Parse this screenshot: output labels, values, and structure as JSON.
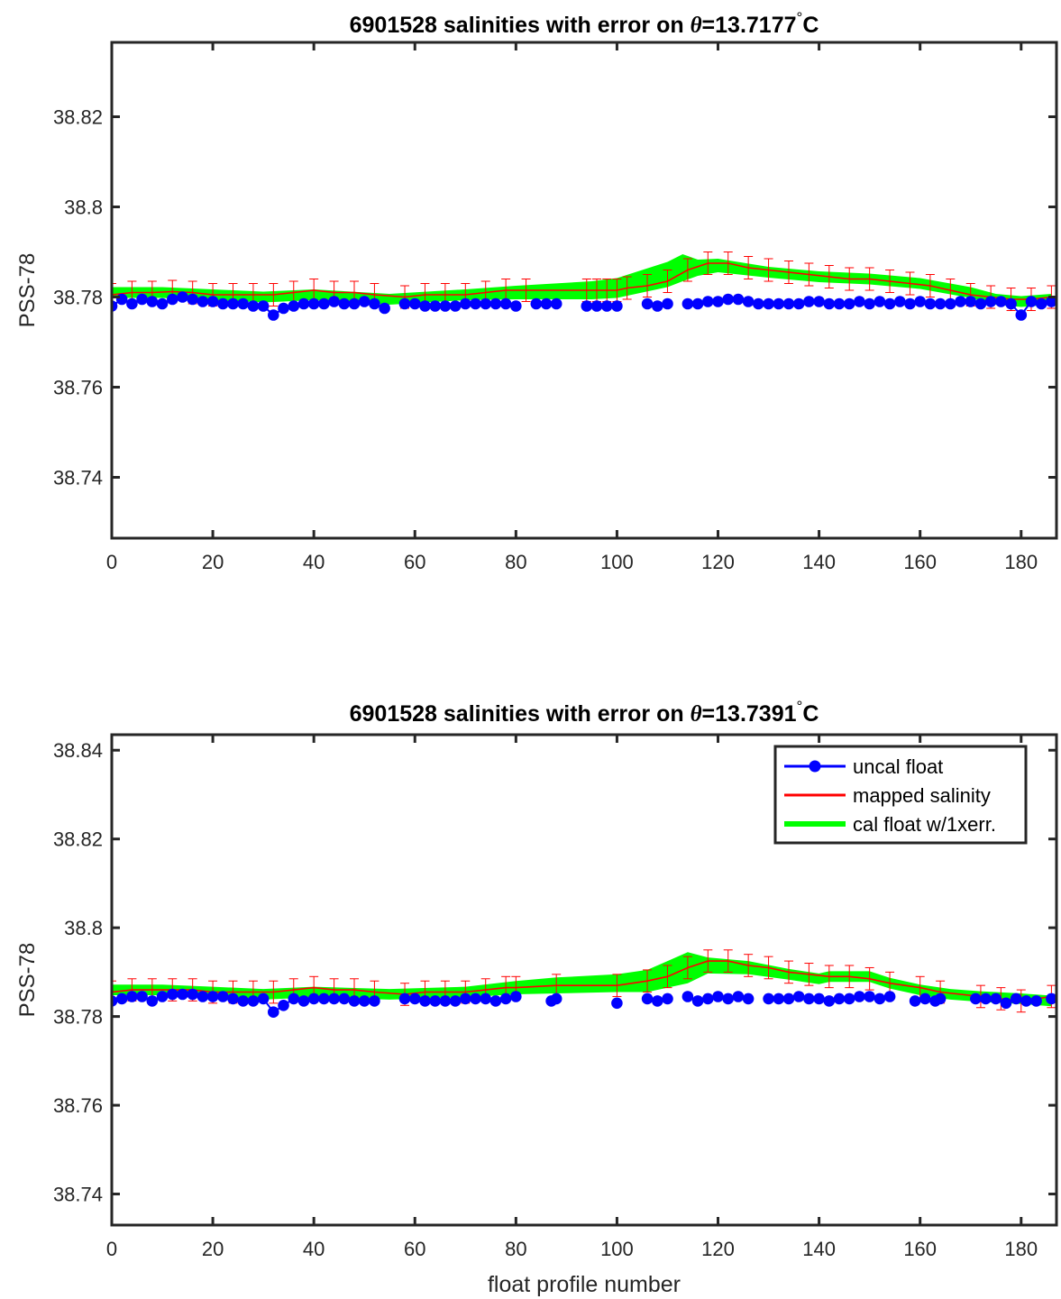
{
  "chart_data": [
    {
      "type": "line",
      "title": "6901528 salinities with error on θ=13.7177°C",
      "title_parts": {
        "prefix": "6901528 salinities with error on ",
        "symbol": "θ",
        "value": "=13.7177",
        "degree": "°",
        "unit": "C"
      },
      "xlabel": "",
      "ylabel": "PSS-78",
      "xlim": [
        0,
        187
      ],
      "ylim": [
        38.7265,
        38.8365
      ],
      "xticks": [
        0,
        20,
        40,
        60,
        80,
        100,
        120,
        140,
        160,
        180
      ],
      "xtick_labels": [
        "0",
        "20",
        "40",
        "60",
        "80",
        "100",
        "120",
        "140",
        "160",
        "180"
      ],
      "yticks": [
        38.74,
        38.76,
        38.78,
        38.8,
        38.82
      ],
      "ytick_labels": [
        "38.74",
        "38.76",
        "38.78",
        "38.8",
        "38.82"
      ],
      "grid": false,
      "legend": null,
      "series": [
        {
          "name": "uncal float",
          "color": "#0000ff",
          "style": "line-marker",
          "x": [
            0,
            2,
            4,
            6,
            8,
            10,
            12,
            14,
            16,
            18,
            20,
            22,
            24,
            26,
            28,
            30,
            32,
            34,
            36,
            38,
            40,
            42,
            44,
            46,
            48,
            50,
            52,
            54,
            58,
            60,
            62,
            64,
            66,
            68,
            70,
            72,
            74,
            76,
            78,
            80,
            84,
            86,
            88,
            94,
            96,
            98,
            100,
            106,
            108,
            110,
            114,
            116,
            118,
            120,
            122,
            124,
            126,
            128,
            130,
            132,
            134,
            136,
            138,
            140,
            142,
            144,
            146,
            148,
            150,
            152,
            154,
            156,
            158,
            160,
            162,
            164,
            166,
            168,
            170,
            172,
            174,
            176,
            178,
            180,
            182,
            184,
            186
          ],
          "y": [
            38.778,
            38.7795,
            38.7785,
            38.7795,
            38.779,
            38.7785,
            38.7795,
            38.78,
            38.7795,
            38.779,
            38.779,
            38.7785,
            38.7785,
            38.7785,
            38.778,
            38.778,
            38.776,
            38.7775,
            38.778,
            38.7785,
            38.7785,
            38.7785,
            38.779,
            38.7785,
            38.7785,
            38.779,
            38.7785,
            38.7775,
            38.7785,
            38.7785,
            38.778,
            38.778,
            38.778,
            38.778,
            38.7785,
            38.7785,
            38.7785,
            38.7785,
            38.7785,
            38.778,
            38.7785,
            38.7785,
            38.7785,
            38.778,
            38.778,
            38.778,
            38.778,
            38.7785,
            38.778,
            38.7785,
            38.7785,
            38.7785,
            38.779,
            38.779,
            38.7795,
            38.7795,
            38.779,
            38.7785,
            38.7785,
            38.7785,
            38.7785,
            38.7785,
            38.779,
            38.779,
            38.7785,
            38.7785,
            38.7785,
            38.779,
            38.7785,
            38.779,
            38.7785,
            38.779,
            38.7785,
            38.779,
            38.7785,
            38.7785,
            38.7785,
            38.779,
            38.779,
            38.7785,
            38.779,
            38.779,
            38.7785,
            38.776,
            38.779,
            38.7785,
            38.779
          ]
        },
        {
          "name": "mapped salinity",
          "color": "#ff0000",
          "style": "line-errorbar",
          "x": [
            0,
            4,
            8,
            12,
            16,
            20,
            24,
            28,
            32,
            36,
            40,
            44,
            48,
            52,
            58,
            62,
            66,
            70,
            74,
            78,
            82,
            94,
            96,
            98,
            100,
            102,
            106,
            110,
            114,
            118,
            122,
            126,
            130,
            134,
            138,
            142,
            146,
            150,
            154,
            158,
            162,
            166,
            170,
            174,
            178,
            182,
            186
          ],
          "y": [
            38.7805,
            38.781,
            38.781,
            38.7812,
            38.781,
            38.7805,
            38.7805,
            38.7805,
            38.7805,
            38.781,
            38.7815,
            38.781,
            38.781,
            38.7805,
            38.78,
            38.7805,
            38.7805,
            38.7805,
            38.781,
            38.7815,
            38.7815,
            38.7815,
            38.7815,
            38.7815,
            38.7815,
            38.782,
            38.7825,
            38.7835,
            38.786,
            38.7875,
            38.7875,
            38.7865,
            38.786,
            38.7855,
            38.785,
            38.7845,
            38.784,
            38.784,
            38.7835,
            38.783,
            38.7825,
            38.7815,
            38.7805,
            38.78,
            38.7795,
            38.7795,
            38.78
          ],
          "err": 0.0025
        },
        {
          "name": "cal float w/1xerr.",
          "color": "#00ff00",
          "style": "band",
          "x": [
            0,
            10,
            20,
            30,
            40,
            55,
            70,
            80,
            95,
            100,
            105,
            110,
            113,
            116,
            120,
            130,
            140,
            150,
            160,
            170,
            175,
            180,
            186
          ],
          "y": [
            38.781,
            38.781,
            38.7805,
            38.78,
            38.7805,
            38.7795,
            38.7805,
            38.781,
            38.7815,
            38.782,
            38.7835,
            38.785,
            38.7865,
            38.7865,
            38.787,
            38.7855,
            38.7845,
            38.784,
            38.783,
            38.781,
            38.7795,
            38.779,
            38.7795
          ],
          "half_width": [
            0.0012,
            0.0012,
            0.0012,
            0.0012,
            0.0012,
            0.0012,
            0.0012,
            0.0015,
            0.002,
            0.0022,
            0.0025,
            0.0028,
            0.003,
            0.0018,
            0.0015,
            0.0012,
            0.0012,
            0.0012,
            0.0012,
            0.0012,
            0.0012,
            0.0012,
            0.0012
          ]
        }
      ]
    },
    {
      "type": "line",
      "title": "6901528 salinities with error on θ=13.7391°C",
      "title_parts": {
        "prefix": "6901528 salinities with error on ",
        "symbol": "θ",
        "value": "=13.7391",
        "degree": "°",
        "unit": "C"
      },
      "xlabel": "float profile number",
      "ylabel": "PSS-78",
      "xlim": [
        0,
        187
      ],
      "ylim": [
        38.733,
        38.8435
      ],
      "xticks": [
        0,
        20,
        40,
        60,
        80,
        100,
        120,
        140,
        160,
        180
      ],
      "xtick_labels": [
        "0",
        "20",
        "40",
        "60",
        "80",
        "100",
        "120",
        "140",
        "160",
        "180"
      ],
      "yticks": [
        38.74,
        38.76,
        38.78,
        38.8,
        38.82,
        38.84
      ],
      "ytick_labels": [
        "38.74",
        "38.76",
        "38.78",
        "38.8",
        "38.82",
        "38.84"
      ],
      "grid": false,
      "legend": {
        "placement": "top-right",
        "entries": [
          "uncal float",
          "mapped salinity",
          "cal float w/1xerr."
        ]
      },
      "series": [
        {
          "name": "uncal float",
          "color": "#0000ff",
          "style": "line-marker",
          "x": [
            0,
            2,
            4,
            6,
            8,
            10,
            12,
            14,
            16,
            18,
            20,
            22,
            24,
            26,
            28,
            30,
            32,
            34,
            36,
            38,
            40,
            42,
            44,
            46,
            48,
            50,
            52,
            58,
            60,
            62,
            64,
            66,
            68,
            70,
            72,
            74,
            76,
            78,
            80,
            87,
            88,
            100,
            106,
            108,
            110,
            114,
            116,
            118,
            120,
            122,
            124,
            126,
            130,
            132,
            134,
            136,
            138,
            140,
            142,
            144,
            146,
            148,
            150,
            152,
            154,
            159,
            161,
            163,
            164,
            171,
            173,
            175,
            177,
            179,
            181,
            183,
            186
          ],
          "y": [
            38.7835,
            38.784,
            38.7845,
            38.7845,
            38.7835,
            38.7845,
            38.785,
            38.785,
            38.785,
            38.7845,
            38.7845,
            38.7845,
            38.784,
            38.7835,
            38.7835,
            38.784,
            38.781,
            38.7825,
            38.784,
            38.7835,
            38.784,
            38.784,
            38.784,
            38.784,
            38.7835,
            38.7835,
            38.7835,
            38.784,
            38.784,
            38.7835,
            38.7835,
            38.7835,
            38.7835,
            38.784,
            38.784,
            38.784,
            38.7835,
            38.784,
            38.7845,
            38.7835,
            38.784,
            38.783,
            38.784,
            38.7835,
            38.784,
            38.7845,
            38.7835,
            38.784,
            38.7845,
            38.784,
            38.7845,
            38.784,
            38.784,
            38.784,
            38.784,
            38.7845,
            38.784,
            38.784,
            38.7835,
            38.784,
            38.784,
            38.7845,
            38.7845,
            38.784,
            38.7845,
            38.7835,
            38.784,
            38.7835,
            38.784,
            38.784,
            38.784,
            38.784,
            38.783,
            38.784,
            38.7835,
            38.7835,
            38.784
          ]
        },
        {
          "name": "mapped salinity",
          "color": "#ff0000",
          "style": "line-errorbar",
          "x": [
            0,
            4,
            8,
            12,
            16,
            20,
            24,
            28,
            32,
            36,
            40,
            44,
            48,
            52,
            58,
            62,
            66,
            70,
            74,
            78,
            80,
            88,
            100,
            106,
            110,
            114,
            118,
            122,
            126,
            130,
            134,
            138,
            142,
            146,
            150,
            154,
            160,
            164,
            172,
            176,
            180,
            186
          ],
          "y": [
            38.7855,
            38.786,
            38.786,
            38.786,
            38.786,
            38.7855,
            38.7855,
            38.7855,
            38.7855,
            38.786,
            38.7865,
            38.786,
            38.786,
            38.7855,
            38.785,
            38.7855,
            38.7855,
            38.7855,
            38.786,
            38.7865,
            38.7865,
            38.787,
            38.787,
            38.788,
            38.789,
            38.791,
            38.7925,
            38.7925,
            38.7915,
            38.791,
            38.79,
            38.7895,
            38.789,
            38.789,
            38.7885,
            38.7875,
            38.7865,
            38.7855,
            38.7845,
            38.784,
            38.7835,
            38.7845
          ],
          "err": 0.0025
        },
        {
          "name": "cal float w/1xerr.",
          "color": "#00ff00",
          "style": "band",
          "x": [
            0,
            10,
            20,
            30,
            40,
            55,
            70,
            80,
            88,
            100,
            106,
            110,
            114,
            118,
            126,
            134,
            140,
            142,
            150,
            154,
            160,
            166,
            172,
            180,
            186
          ],
          "y": [
            38.786,
            38.786,
            38.7855,
            38.785,
            38.7855,
            38.785,
            38.7855,
            38.7865,
            38.787,
            38.7875,
            38.788,
            38.7895,
            38.791,
            38.7915,
            38.791,
            38.7895,
            38.7885,
            38.789,
            38.789,
            38.7875,
            38.786,
            38.785,
            38.7845,
            38.784,
            38.7835
          ],
          "half_width": [
            0.0012,
            0.0012,
            0.0012,
            0.0012,
            0.0012,
            0.0012,
            0.0012,
            0.0015,
            0.0018,
            0.002,
            0.0025,
            0.003,
            0.0035,
            0.0018,
            0.0015,
            0.0012,
            0.0012,
            0.0012,
            0.0012,
            0.0012,
            0.0012,
            0.0012,
            0.0012,
            0.0012,
            0.0012
          ]
        }
      ]
    }
  ]
}
